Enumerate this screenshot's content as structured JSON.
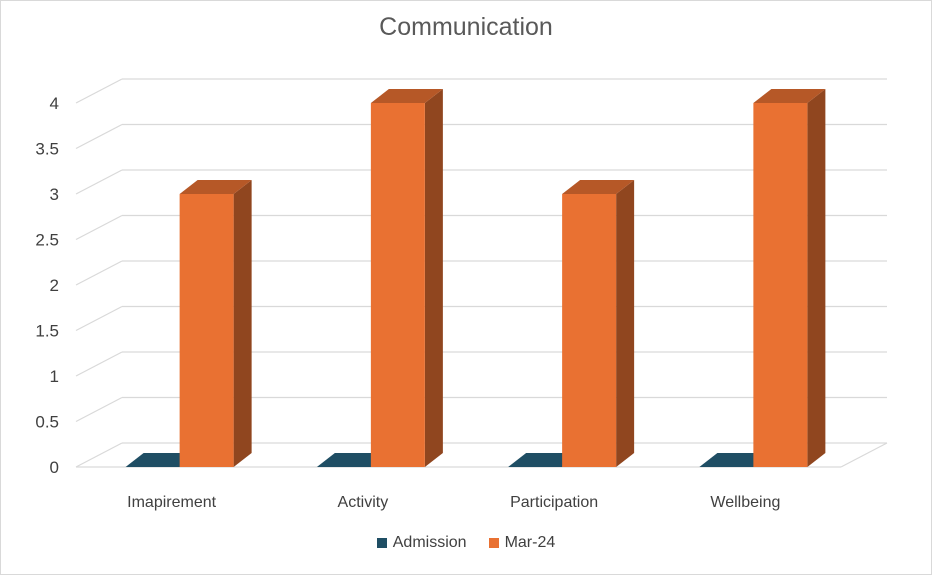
{
  "chart_data": {
    "type": "bar",
    "title": "Communication",
    "categories": [
      "Imapirement",
      "Activity",
      "Participation",
      "Wellbeing"
    ],
    "series": [
      {
        "name": "Admission",
        "values": [
          0,
          0,
          0,
          0
        ],
        "color": "#1f4e64"
      },
      {
        "name": "Mar-24",
        "values": [
          3,
          4,
          3,
          4
        ],
        "color": "#e97132"
      }
    ],
    "ylim": [
      0,
      4
    ],
    "yticks": [
      "0",
      "0.5",
      "1",
      "1.5",
      "2",
      "2.5",
      "3",
      "3.5",
      "4"
    ],
    "grid": true,
    "legend_position": "bottom"
  }
}
